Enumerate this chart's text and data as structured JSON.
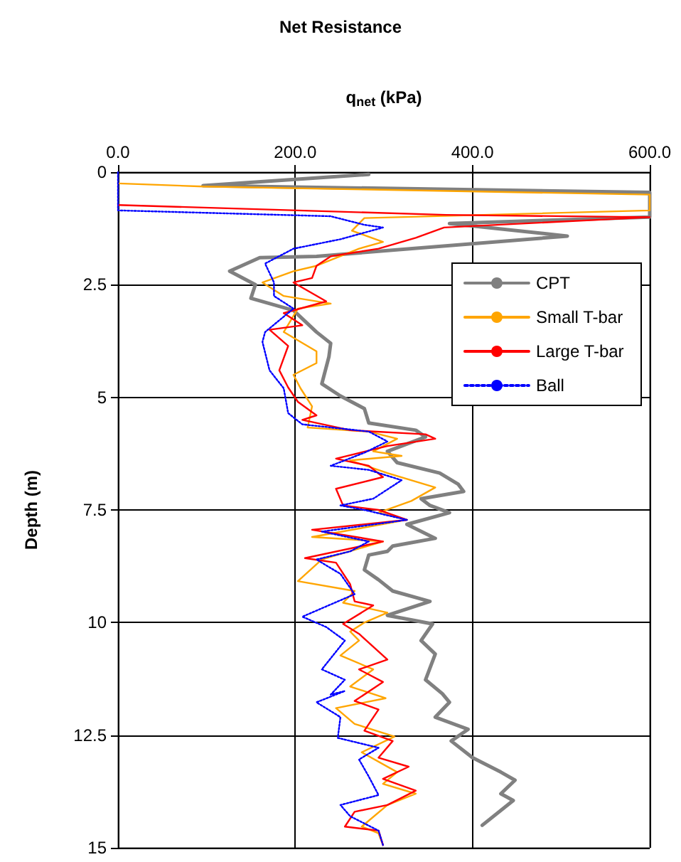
{
  "chart_data": {
    "type": "line",
    "title": "Net Resistance",
    "xlabel": "q$_{net}$ (kPa)",
    "ylabel": "Depth (m)",
    "xlim": [
      0,
      600
    ],
    "xticks": [
      {
        "value": 0,
        "label": "0.0"
      },
      {
        "value": 200,
        "label": "200.0"
      },
      {
        "value": 400,
        "label": "400.0"
      },
      {
        "value": 600,
        "label": "600.0"
      }
    ],
    "ylim": [
      15,
      0
    ],
    "yticks": [
      0,
      2.5,
      5,
      7.5,
      10,
      12.5,
      15
    ],
    "grid": true,
    "legend": "top right",
    "marker": "none",
    "series": [
      {
        "name": "CPT",
        "color": "#808080",
        "line_style": "solid",
        "x": [
          283,
          96,
          600,
          600,
          374,
          507,
          224,
          160,
          126,
          155,
          150,
          198,
          224,
          240,
          238,
          230,
          251,
          278,
          283,
          336,
          347,
          304,
          315,
          363,
          384,
          390,
          342,
          352,
          374,
          326,
          358,
          310,
          304,
          283,
          278,
          294,
          310,
          352,
          304,
          355,
          342,
          358,
          347,
          366,
          374,
          358,
          395,
          376,
          400,
          432,
          448,
          432,
          446,
          411
        ],
        "values": [
          0.05,
          0.3,
          0.45,
          1.0,
          1.14,
          1.42,
          1.87,
          1.9,
          2.2,
          2.5,
          2.8,
          3.07,
          3.55,
          3.8,
          4.1,
          4.7,
          4.97,
          5.25,
          5.57,
          5.73,
          5.88,
          6.2,
          6.45,
          6.68,
          6.93,
          7.09,
          7.25,
          7.4,
          7.56,
          7.82,
          8.13,
          8.3,
          8.42,
          8.5,
          8.83,
          9.05,
          9.3,
          9.53,
          9.84,
          10.03,
          10.4,
          10.7,
          11.27,
          11.58,
          11.77,
          12.1,
          12.37,
          12.63,
          13.0,
          13.32,
          13.5,
          13.8,
          13.95,
          14.5
        ]
      },
      {
        "name": "Small T-bar",
        "color": "#ffa500",
        "line_style": "solid",
        "x": [
          0,
          96,
          600,
          600,
          278,
          264,
          299,
          272,
          224,
          198,
          163,
          187,
          240,
          203,
          187,
          224,
          224,
          198,
          206,
          219,
          214,
          283,
          315,
          288,
          320,
          262,
          304,
          358,
          331,
          294,
          326,
          219,
          299,
          230,
          203,
          267,
          254,
          304,
          278,
          262,
          272,
          251,
          288,
          262,
          302,
          246,
          267,
          312,
          275,
          315,
          299,
          336,
          304,
          275,
          294,
          299
        ],
        "values": [
          0.25,
          0.32,
          0.5,
          0.85,
          1.02,
          1.3,
          1.55,
          1.7,
          2.08,
          2.2,
          2.45,
          2.75,
          2.92,
          3.03,
          3.55,
          3.98,
          4.24,
          4.5,
          4.8,
          5.2,
          5.67,
          5.76,
          5.92,
          6.2,
          6.3,
          6.4,
          6.68,
          7.0,
          7.3,
          7.56,
          7.72,
          8.1,
          8.2,
          8.6,
          9.08,
          9.3,
          9.56,
          9.78,
          10.0,
          10.2,
          10.4,
          10.73,
          11.04,
          11.42,
          11.68,
          11.9,
          12.25,
          12.53,
          12.88,
          13.32,
          13.58,
          13.8,
          14.05,
          14.53,
          14.68,
          14.94
        ]
      },
      {
        "name": "Large T-bar",
        "color": "#ff0000",
        "line_style": "solid",
        "x": [
          0,
          370,
          600,
          368,
          336,
          294,
          240,
          224,
          219,
          198,
          235,
          187,
          208,
          171,
          192,
          182,
          192,
          203,
          224,
          208,
          262,
          347,
          358,
          304,
          246,
          283,
          299,
          246,
          254,
          294,
          326,
          219,
          299,
          211,
          246,
          262,
          267,
          288,
          254,
          272,
          304,
          272,
          299,
          267,
          294,
          278,
          310,
          294,
          328,
          299,
          336,
          304,
          267,
          256,
          294,
          299
        ],
        "values": [
          0.73,
          0.95,
          1.0,
          1.23,
          1.46,
          1.7,
          1.87,
          2.08,
          2.35,
          2.45,
          2.87,
          3.13,
          3.4,
          3.5,
          3.86,
          4.4,
          4.78,
          5.1,
          5.4,
          5.5,
          5.73,
          5.82,
          5.92,
          6.08,
          6.36,
          6.52,
          6.77,
          7.03,
          7.4,
          7.5,
          7.72,
          7.94,
          8.2,
          8.57,
          8.67,
          9.15,
          9.53,
          9.62,
          10.03,
          10.25,
          10.82,
          11.04,
          11.32,
          11.74,
          11.93,
          12.4,
          12.63,
          13.0,
          13.2,
          13.47,
          13.73,
          14.05,
          14.2,
          14.53,
          14.62,
          14.94
        ]
      },
      {
        "name": "Ball",
        "color": "#0000ff",
        "line_style": "dotted",
        "x": [
          0,
          0,
          240,
          278,
          299,
          251,
          198,
          166,
          176,
          176,
          198,
          166,
          163,
          171,
          187,
          192,
          208,
          283,
          304,
          278,
          240,
          283,
          320,
          288,
          251,
          278,
          326,
          230,
          283,
          262,
          224,
          251,
          267,
          208,
          235,
          256,
          230,
          256,
          240,
          256,
          224,
          251,
          248,
          294,
          272,
          283,
          294,
          251,
          262,
          294,
          299
        ],
        "values": [
          0,
          0.85,
          0.98,
          1.17,
          1.23,
          1.49,
          1.7,
          2.03,
          2.45,
          2.75,
          3.03,
          3.55,
          3.77,
          4.4,
          4.8,
          5.35,
          5.6,
          5.76,
          5.98,
          6.23,
          6.52,
          6.61,
          6.84,
          7.25,
          7.4,
          7.5,
          7.72,
          7.98,
          8.2,
          8.42,
          8.6,
          8.92,
          9.37,
          9.87,
          10.1,
          10.4,
          11.04,
          11.27,
          11.6,
          11.52,
          11.77,
          12.1,
          12.56,
          12.78,
          13.04,
          13.42,
          13.83,
          14.05,
          14.3,
          14.62,
          14.94
        ]
      }
    ]
  }
}
